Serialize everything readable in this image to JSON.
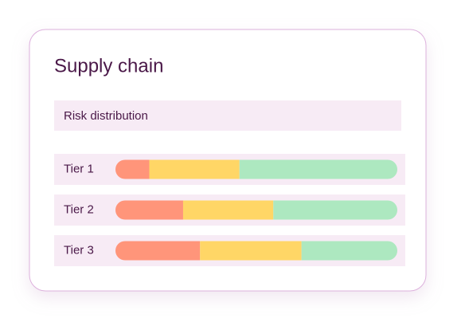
{
  "chart_data": {
    "type": "bar",
    "title": "Supply chain",
    "subtitle": "Risk distribution",
    "categories": [
      "Tier 1",
      "Tier 2",
      "Tier 3"
    ],
    "series": [
      {
        "color": "#ff957a",
        "values": [
          12,
          24,
          30
        ]
      },
      {
        "color": "#ffd666",
        "values": [
          32,
          32,
          36
        ]
      },
      {
        "color": "#ade8c0",
        "values": [
          56,
          44,
          34
        ]
      }
    ],
    "xlim": [
      0,
      100
    ],
    "orientation": "horizontal",
    "stacked": true
  }
}
